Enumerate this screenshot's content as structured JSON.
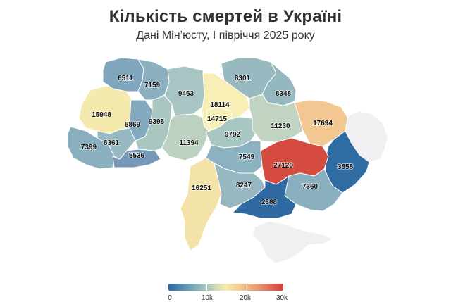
{
  "title": "Кількість смертей в Україні",
  "subtitle": "Дані Мін’юсту, І півріччя 2025 року",
  "regions": [
    {
      "id": "volyn",
      "value": "6511",
      "color": "#7fa6bd"
    },
    {
      "id": "rivne",
      "value": "7159",
      "color": "#8bb0bf"
    },
    {
      "id": "zhytomyr",
      "value": "9463",
      "color": "#a7c5c2"
    },
    {
      "id": "kyiv_oblast",
      "value": "18114",
      "color": "#f8efb6"
    },
    {
      "id": "kyiv_city",
      "value": "14715",
      "color": "#f6efb5"
    },
    {
      "id": "chernihiv",
      "value": "8301",
      "color": "#98b9c0"
    },
    {
      "id": "sumy",
      "value": "8348",
      "color": "#95b7c0"
    },
    {
      "id": "lviv",
      "value": "15948",
      "color": "#f5eaae"
    },
    {
      "id": "ternopil",
      "value": "6869",
      "color": "#83a9be"
    },
    {
      "id": "khmelnytskyi",
      "value": "9395",
      "color": "#a9c6c1"
    },
    {
      "id": "vinnytsia",
      "value": "11394",
      "color": "#bcd1c0"
    },
    {
      "id": "cherkasy",
      "value": "9792",
      "color": "#a9c7c2"
    },
    {
      "id": "poltava",
      "value": "11230",
      "color": "#c0d4c1"
    },
    {
      "id": "kharkiv",
      "value": "17694",
      "color": "#f2c791"
    },
    {
      "id": "zakarpattia",
      "value": "7399",
      "color": "#8aafbf"
    },
    {
      "id": "ivano_frankivsk",
      "value": "8361",
      "color": "#97b8c0"
    },
    {
      "id": "chernivtsi",
      "value": "5536",
      "color": "#7499b9"
    },
    {
      "id": "kirovohrad",
      "value": "7549",
      "color": "#8cb1c0"
    },
    {
      "id": "dnipropetrovsk",
      "value": "27120",
      "color": "#d64b40"
    },
    {
      "id": "donetsk",
      "value": "3858",
      "color": "#2f6ca2"
    },
    {
      "id": "luhansk",
      "value": "",
      "color": "#f0f0f2"
    },
    {
      "id": "odesa",
      "value": "16251",
      "color": "#f4e3a8"
    },
    {
      "id": "mykolaiv",
      "value": "8247",
      "color": "#97b8c0"
    },
    {
      "id": "zaporizhzhia",
      "value": "7360",
      "color": "#8aafbf"
    },
    {
      "id": "kherson",
      "value": "2388",
      "color": "#2e6aa1"
    },
    {
      "id": "crimea",
      "value": "",
      "color": "#f0f0f2"
    }
  ],
  "legend": {
    "gradient": [
      "#2c6aa0",
      "#a8c6c0",
      "#f5ecb0",
      "#d73b3b"
    ],
    "labels": [
      "0",
      "10k",
      "20k",
      "30k"
    ]
  }
}
